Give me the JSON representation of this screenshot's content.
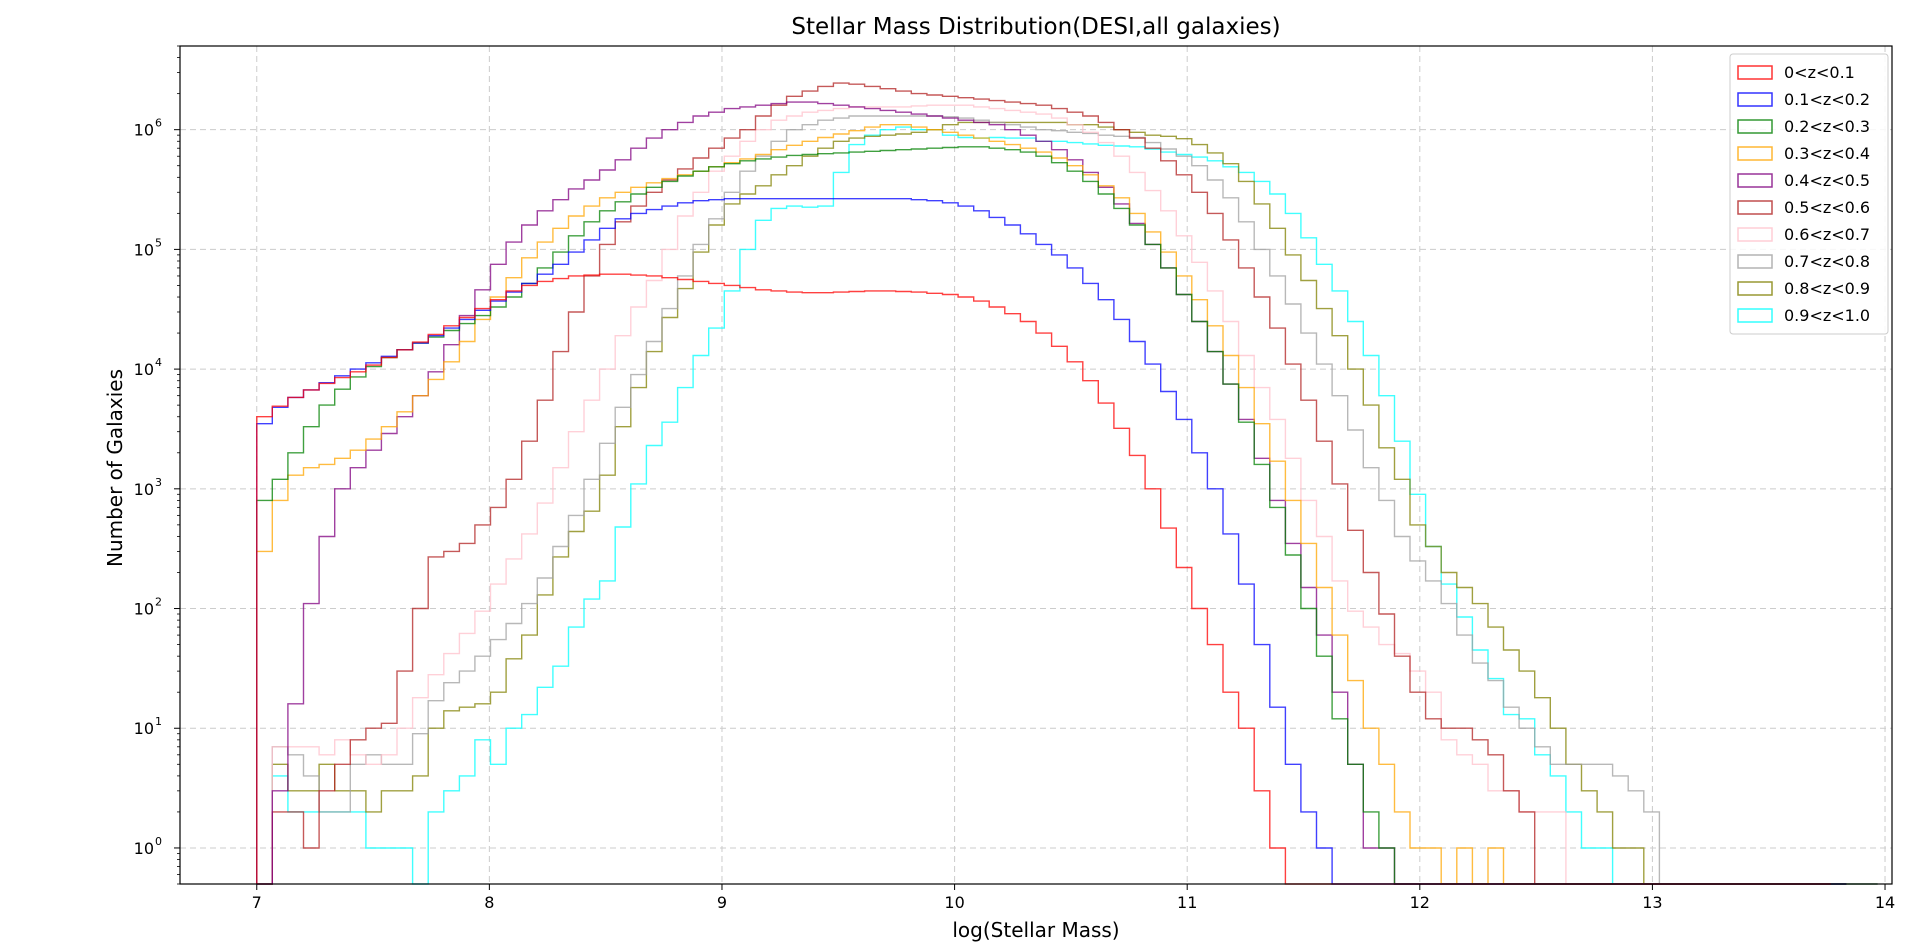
{
  "chart_data": {
    "type": "histogram-step",
    "title": "Stellar Mass Distribution(DESI,all galaxies)",
    "xlabel": "log(Stellar Mass)",
    "ylabel": "Number of Galaxies",
    "xlim": [
      6.67,
      14.03
    ],
    "ylim": [
      0.5,
      5000000
    ],
    "yscale": "log",
    "grid": true,
    "legend_position": "top-right",
    "x_ticks": [
      7,
      8,
      9,
      10,
      11,
      12,
      13,
      14
    ],
    "y_tick_exponents": [
      0,
      1,
      2,
      3,
      4,
      5,
      6
    ],
    "bin_start": 7.0,
    "bin_width": 0.067,
    "series": [
      {
        "name": "0.9<z<1.0",
        "color": "#00ffff",
        "values": [
          0,
          4,
          2,
          2,
          2,
          2,
          2,
          1,
          1,
          1,
          0,
          2,
          3,
          4,
          8,
          5,
          10,
          13,
          22,
          33,
          70,
          120,
          170,
          480,
          1100,
          2300,
          3600,
          7000,
          13000,
          22000,
          45000,
          100000,
          175000,
          220000,
          230000,
          225000,
          230000,
          440000,
          750000,
          900000,
          1000000,
          1050000,
          1000000,
          1000000,
          900000,
          860000,
          850000,
          860000,
          850000,
          850000,
          800000,
          800000,
          780000,
          760000,
          740000,
          730000,
          720000,
          690000,
          650000,
          620000,
          590000,
          550000,
          490000,
          440000,
          370000,
          290000,
          200000,
          125000,
          75000,
          45000,
          25000,
          13000,
          6000,
          2500,
          900,
          330,
          160,
          85,
          45,
          26,
          13,
          12,
          6,
          4,
          2,
          1,
          1,
          0,
          0,
          0,
          0,
          0,
          0,
          0,
          0,
          0,
          0,
          0,
          0,
          0,
          0,
          0,
          0,
          0
        ]
      },
      {
        "name": "0.8<z<0.9",
        "color": "#808000",
        "values": [
          0,
          5,
          3,
          3,
          5,
          3,
          3,
          2,
          3,
          3,
          4,
          10,
          14,
          15,
          16,
          20,
          38,
          60,
          130,
          270,
          440,
          650,
          1300,
          3300,
          7000,
          14000,
          27000,
          47000,
          95000,
          160000,
          240000,
          290000,
          340000,
          420000,
          500000,
          600000,
          700000,
          800000,
          850000,
          880000,
          900000,
          920000,
          950000,
          1000000,
          1100000,
          1150000,
          1150000,
          1150000,
          1150000,
          1150000,
          1150000,
          1150000,
          1100000,
          1100000,
          1050000,
          1000000,
          950000,
          900000,
          880000,
          840000,
          750000,
          640000,
          520000,
          370000,
          240000,
          150000,
          90000,
          55000,
          32000,
          19000,
          10000,
          5000,
          2200,
          1200,
          500,
          330,
          200,
          150,
          110,
          70,
          45,
          30,
          18,
          10,
          5,
          3,
          2,
          1,
          1,
          0,
          0,
          0,
          0,
          0,
          0,
          0,
          0,
          0,
          0,
          0,
          0,
          0,
          0,
          0
        ]
      },
      {
        "name": "0.7<z<0.8",
        "color": "#a0a0a0",
        "values": [
          0,
          7,
          6,
          4,
          2,
          2,
          5,
          6,
          5,
          5,
          9,
          17,
          24,
          30,
          40,
          55,
          75,
          110,
          180,
          330,
          600,
          1200,
          2400,
          4800,
          9000,
          17000,
          32000,
          60000,
          110000,
          180000,
          300000,
          450000,
          600000,
          800000,
          1000000,
          1100000,
          1200000,
          1250000,
          1300000,
          1300000,
          1300000,
          1300000,
          1300000,
          1300000,
          1280000,
          1250000,
          1200000,
          1150000,
          1100000,
          1050000,
          1000000,
          980000,
          950000,
          930000,
          900000,
          880000,
          860000,
          780000,
          690000,
          600000,
          500000,
          380000,
          270000,
          170000,
          100000,
          60000,
          35000,
          20000,
          11000,
          6000,
          3100,
          1500,
          800,
          400,
          250,
          170,
          110,
          60,
          35,
          25,
          15,
          10,
          7,
          5,
          5,
          5,
          5,
          4,
          3,
          2,
          0,
          0,
          0,
          0,
          0,
          0,
          0,
          0,
          0,
          0,
          0,
          0,
          0,
          0
        ]
      },
      {
        "name": "0.6<z<0.7",
        "color": "#ffc0cb",
        "values": [
          0,
          7,
          7,
          7,
          6,
          8,
          6,
          5,
          6,
          10,
          18,
          28,
          42,
          62,
          95,
          160,
          260,
          420,
          760,
          1500,
          3000,
          5500,
          10000,
          19000,
          33000,
          55000,
          100000,
          190000,
          300000,
          450000,
          600000,
          800000,
          1000000,
          1200000,
          1300000,
          1400000,
          1450000,
          1500000,
          1550000,
          1550000,
          1550000,
          1550000,
          1580000,
          1600000,
          1600000,
          1600000,
          1550000,
          1500000,
          1450000,
          1400000,
          1350000,
          1250000,
          1100000,
          950000,
          780000,
          600000,
          440000,
          310000,
          210000,
          130000,
          78000,
          45000,
          25000,
          13000,
          7000,
          3800,
          1800,
          800,
          400,
          170,
          95,
          70,
          50,
          42,
          30,
          20,
          8,
          6,
          5,
          3,
          3,
          2,
          2,
          2,
          0,
          0,
          0,
          0,
          0,
          0,
          0,
          0,
          0,
          0,
          0,
          0,
          0,
          0,
          0,
          0,
          0
        ]
      },
      {
        "name": "0.5<z<0.6",
        "color": "#b22222",
        "values": [
          0,
          2,
          2,
          1,
          3,
          5,
          8,
          10,
          11,
          30,
          100,
          270,
          300,
          350,
          500,
          700,
          1200,
          2500,
          5500,
          14000,
          30000,
          60000,
          110000,
          170000,
          230000,
          300000,
          380000,
          470000,
          580000,
          700000,
          850000,
          1000000,
          1300000,
          1600000,
          1900000,
          2100000,
          2300000,
          2450000,
          2400000,
          2300000,
          2200000,
          2100000,
          2000000,
          1950000,
          1900000,
          1850000,
          1800000,
          1750000,
          1700000,
          1650000,
          1600000,
          1500000,
          1400000,
          1300000,
          1150000,
          1000000,
          850000,
          700000,
          550000,
          420000,
          300000,
          200000,
          120000,
          70000,
          40000,
          22000,
          11000,
          5500,
          2500,
          1100,
          450,
          200,
          90,
          40,
          20,
          12,
          10,
          10,
          8,
          6,
          3,
          2,
          0,
          0,
          0,
          0,
          0,
          0,
          0,
          0,
          0,
          0,
          0,
          0,
          0,
          0,
          0,
          0,
          0,
          0,
          0
        ]
      },
      {
        "name": "0.4<z<0.5",
        "color": "#800080",
        "values": [
          0,
          3,
          16,
          110,
          400,
          1000,
          1500,
          2100,
          2900,
          4000,
          6000,
          9500,
          16000,
          28000,
          46000,
          75000,
          115000,
          160000,
          210000,
          260000,
          320000,
          380000,
          460000,
          560000,
          700000,
          850000,
          1000000,
          1150000,
          1300000,
          1400000,
          1500000,
          1550000,
          1600000,
          1650000,
          1700000,
          1700000,
          1650000,
          1600000,
          1550000,
          1500000,
          1450000,
          1400000,
          1350000,
          1300000,
          1250000,
          1200000,
          1150000,
          1100000,
          1000000,
          900000,
          800000,
          680000,
          560000,
          440000,
          330000,
          240000,
          165000,
          110000,
          70000,
          42000,
          25000,
          14000,
          7500,
          3800,
          1800,
          800,
          350,
          150,
          60,
          20,
          5,
          1,
          1,
          0,
          0,
          0,
          0,
          0,
          0,
          0,
          0,
          0,
          0,
          0,
          0,
          0,
          0,
          0,
          0,
          0,
          0,
          0,
          0,
          0,
          0,
          0,
          0,
          0,
          0,
          0,
          0,
          0
        ]
      },
      {
        "name": "0.3<z<0.4",
        "color": "#ffa500",
        "values": [
          300,
          800,
          1300,
          1500,
          1600,
          1800,
          2100,
          2600,
          3300,
          4400,
          6000,
          8200,
          11500,
          17000,
          26000,
          40000,
          58000,
          85000,
          115000,
          150000,
          190000,
          230000,
          270000,
          300000,
          330000,
          360000,
          390000,
          420000,
          450000,
          490000,
          530000,
          570000,
          620000,
          680000,
          740000,
          800000,
          860000,
          920000,
          980000,
          1050000,
          1100000,
          1100000,
          1050000,
          1000000,
          950000,
          900000,
          850000,
          800000,
          750000,
          700000,
          650000,
          580000,
          500000,
          420000,
          340000,
          270000,
          200000,
          140000,
          95000,
          60000,
          38000,
          23000,
          13000,
          7000,
          3500,
          1700,
          800,
          350,
          150,
          60,
          25,
          10,
          5,
          2,
          1,
          1,
          0,
          1,
          0,
          1,
          0,
          0,
          0,
          0,
          0,
          0,
          0,
          0,
          0,
          0,
          0,
          0,
          0,
          0,
          0,
          0,
          0,
          0,
          0,
          0,
          0,
          0
        ]
      },
      {
        "name": "0.2<z<0.3",
        "color": "#008000",
        "values": [
          800,
          1200,
          2000,
          3300,
          5000,
          6800,
          8600,
          10500,
          12500,
          14500,
          16500,
          18500,
          21000,
          24000,
          28000,
          33000,
          40000,
          52000,
          70000,
          95000,
          130000,
          170000,
          210000,
          250000,
          290000,
          330000,
          370000,
          410000,
          450000,
          490000,
          520000,
          550000,
          570000,
          590000,
          610000,
          620000,
          630000,
          640000,
          650000,
          660000,
          670000,
          680000,
          690000,
          700000,
          710000,
          720000,
          720000,
          700000,
          680000,
          650000,
          600000,
          530000,
          450000,
          370000,
          290000,
          220000,
          160000,
          110000,
          70000,
          42000,
          25000,
          14000,
          7500,
          3600,
          1600,
          700,
          280,
          100,
          40,
          12,
          5,
          2,
          1,
          0,
          0,
          0,
          0,
          0,
          0,
          0,
          0,
          0,
          0,
          0,
          0,
          0,
          0,
          0,
          0,
          0,
          0,
          0,
          0,
          0,
          0,
          0,
          0,
          0,
          0,
          0,
          0,
          0
        ]
      },
      {
        "name": "0.1<z<0.2",
        "color": "#0000ff",
        "values": [
          3500,
          4800,
          5800,
          6700,
          7700,
          8800,
          10000,
          11300,
          12800,
          14500,
          16500,
          19000,
          22000,
          26000,
          31000,
          37000,
          44000,
          52000,
          62000,
          75000,
          95000,
          120000,
          150000,
          180000,
          200000,
          215000,
          230000,
          245000,
          255000,
          260000,
          265000,
          265000,
          265000,
          265000,
          265000,
          265000,
          265000,
          265000,
          265000,
          265000,
          265000,
          265000,
          260000,
          255000,
          245000,
          230000,
          210000,
          185000,
          160000,
          135000,
          110000,
          90000,
          70000,
          52000,
          38000,
          26000,
          17000,
          11000,
          6500,
          3800,
          2000,
          1000,
          420,
          160,
          50,
          15,
          5,
          2,
          1,
          0,
          0,
          0,
          0,
          0,
          0,
          0,
          0,
          0,
          0,
          0,
          0,
          0,
          0,
          0,
          0,
          0,
          0,
          0,
          0,
          0,
          0,
          0,
          0,
          0,
          0,
          0,
          0,
          0,
          0,
          0,
          0,
          0
        ]
      },
      {
        "name": "0<z<0.1",
        "color": "#ff0000",
        "values": [
          4000,
          4900,
          5800,
          6700,
          7600,
          8500,
          9500,
          10800,
          12500,
          14500,
          16800,
          19500,
          23000,
          27000,
          32000,
          38000,
          45000,
          50000,
          54000,
          57000,
          60000,
          61000,
          62000,
          62000,
          61000,
          60000,
          58000,
          56000,
          54000,
          52000,
          50000,
          48000,
          46000,
          45000,
          44000,
          43500,
          43500,
          44000,
          44500,
          45000,
          45000,
          44500,
          44000,
          43000,
          42000,
          40000,
          37000,
          33000,
          29000,
          25000,
          20000,
          15500,
          11500,
          8000,
          5200,
          3200,
          1900,
          1000,
          470,
          220,
          100,
          50,
          20,
          10,
          3,
          1,
          0,
          0,
          0,
          0,
          0,
          0,
          0,
          0,
          0,
          0,
          0,
          0,
          0,
          0,
          0,
          0,
          0,
          0,
          0,
          0,
          0,
          0,
          0,
          0,
          0,
          0,
          0,
          0,
          0,
          0,
          0,
          0,
          0,
          0,
          0
        ]
      }
    ]
  }
}
